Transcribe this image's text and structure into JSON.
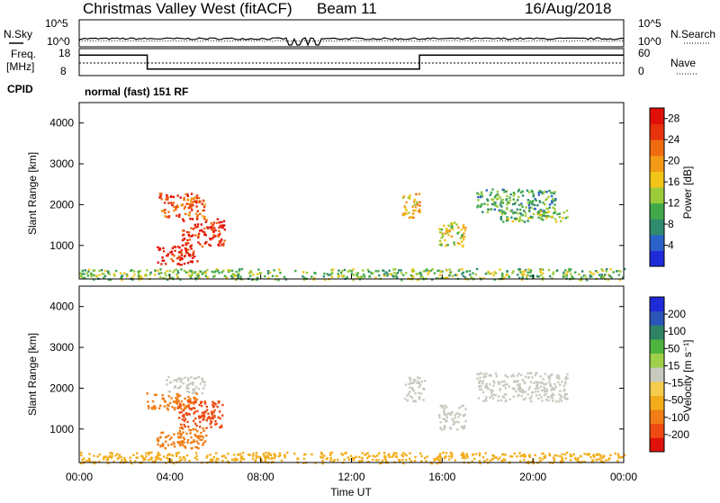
{
  "header": {
    "station": "Christmas Valley West (fitACF)",
    "beam": "Beam 11",
    "date": "16/Aug/2018"
  },
  "left_labels": {
    "nsky": "N.Sky",
    "freq_line1": "Freq.",
    "freq_line2": "[MHz]",
    "cpid": "CPID"
  },
  "right_labels": {
    "nsearch": "N.Search",
    "nave": "Nave"
  },
  "cpid_text": "normal (fast) 151 RF",
  "colors": {
    "power_scale": [
      "#1f2bd8",
      "#2b62c9",
      "#2f8a6e",
      "#41a94a",
      "#9ccb3a",
      "#f2c418",
      "#f39a16",
      "#ef6b10",
      "#e8320c",
      "#e01008"
    ],
    "velocity_scale": [
      "#e0100a",
      "#ee4a12",
      "#f07d16",
      "#f3ad1b",
      "#f4cc4e",
      "#c9c9c0",
      "#9ed04a",
      "#4fb43e",
      "#2f8466",
      "#2b55b8",
      "#1f2bd8"
    ],
    "ground_scatter": "#c9c9c0"
  },
  "chart_data": [
    {
      "type": "line",
      "panel": "noise",
      "left_ticks": [
        "10^5",
        "10^0"
      ],
      "right_ticks": [
        "10^5",
        "10^0"
      ],
      "left_label": "N.Sky",
      "right_label": "N.Search"
    },
    {
      "type": "line",
      "panel": "frequency",
      "left_ticks": [
        "18",
        "8"
      ],
      "right_ticks": [
        "60",
        "0"
      ],
      "left_label": "Freq. [MHz]",
      "right_label": "Nave",
      "freq_series": {
        "x": [
          "00:00",
          "03:00",
          "03:00",
          "15:00",
          "15:00",
          "24:00"
        ],
        "y": [
          16,
          16,
          10,
          10,
          16,
          16
        ]
      }
    },
    {
      "type": "heatmap",
      "panel": "power",
      "ylabel": "Slant Range [km]",
      "y_ticks": [
        1000,
        2000,
        3000,
        4000
      ],
      "ylim": [
        180,
        4500
      ],
      "colorbar_label": "Power [dB]",
      "colorbar_ticks": [
        4,
        8,
        12,
        16,
        20,
        24,
        28
      ],
      "colorbar_range": [
        0,
        30
      ],
      "regions": [
        {
          "t0": 3.5,
          "t1": 5.5,
          "r0": 1700,
          "r1": 2300,
          "value": 24
        },
        {
          "t0": 4.5,
          "t1": 6.4,
          "r0": 1000,
          "r1": 1700,
          "value": 27
        },
        {
          "t0": 3.4,
          "t1": 5.2,
          "r0": 550,
          "r1": 1000,
          "value": 28
        },
        {
          "t0": 0.0,
          "t1": 24.0,
          "r0": 180,
          "r1": 450,
          "value": 12
        },
        {
          "t0": 14.2,
          "t1": 15.0,
          "r0": 1700,
          "r1": 2300,
          "value": 18
        },
        {
          "t0": 15.8,
          "t1": 17.0,
          "r0": 1000,
          "r1": 1600,
          "value": 16
        },
        {
          "t0": 17.5,
          "t1": 21.0,
          "r0": 1800,
          "r1": 2400,
          "value": 10
        },
        {
          "t0": 18.5,
          "t1": 21.5,
          "r0": 1600,
          "r1": 1900,
          "value": 12
        }
      ]
    },
    {
      "type": "heatmap",
      "panel": "velocity",
      "ylabel": "Slant Range [km]",
      "y_ticks": [
        1000,
        2000,
        3000,
        4000
      ],
      "ylim": [
        180,
        4500
      ],
      "xlabel": "Time UT",
      "x_ticks": [
        "00:00",
        "04:00",
        "08:00",
        "12:00",
        "16:00",
        "20:00",
        "00:00"
      ],
      "xlim": [
        0,
        24
      ],
      "colorbar_label": "Velocity [m s⁻¹]",
      "colorbar_ticks": [
        -200,
        -100,
        -50,
        -15,
        15,
        50,
        100,
        200
      ],
      "regions": [
        {
          "t0": 3.8,
          "t1": 5.5,
          "r0": 1900,
          "r1": 2300,
          "value": 0
        },
        {
          "t0": 2.9,
          "t1": 5.2,
          "r0": 1500,
          "r1": 1900,
          "value": -80
        },
        {
          "t0": 4.3,
          "t1": 6.3,
          "r0": 1050,
          "r1": 1700,
          "value": -120
        },
        {
          "t0": 3.4,
          "t1": 5.6,
          "r0": 550,
          "r1": 1050,
          "value": -90
        },
        {
          "t0": 0.0,
          "t1": 24.0,
          "r0": 180,
          "r1": 450,
          "value": -30
        },
        {
          "t0": 14.3,
          "t1": 15.2,
          "r0": 1700,
          "r1": 2300,
          "value": 0
        },
        {
          "t0": 15.8,
          "t1": 17.0,
          "r0": 1000,
          "r1": 1600,
          "value": 0
        },
        {
          "t0": 17.5,
          "t1": 21.5,
          "r0": 1700,
          "r1": 2400,
          "value": 0
        }
      ]
    }
  ]
}
